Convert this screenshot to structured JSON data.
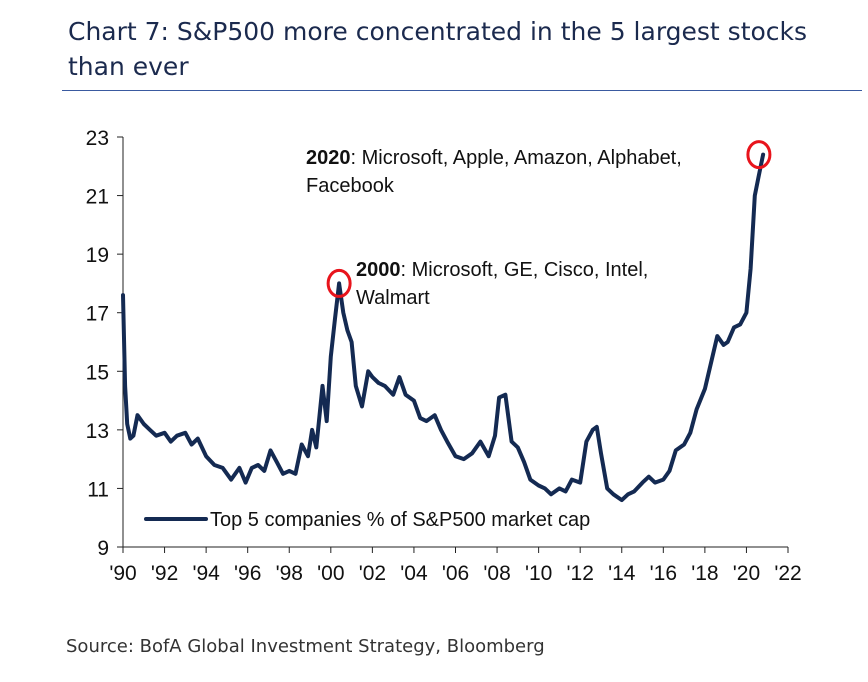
{
  "title": "Chart 7: S&P500 more concentrated in the 5 largest stocks than ever",
  "source": "Source: BofA Global Investment Strategy, Bloomberg",
  "annotations": [
    {
      "bold": "2020",
      "text": ": Microsoft, Apple, Amazon, Alphabet, Facebook"
    },
    {
      "bold": "2000",
      "text": ": Microsoft, GE, Cisco, Intel, Walmart"
    }
  ],
  "colors": {
    "line": "#142a52",
    "highlight": "#e8141c",
    "title": "#1b2a4e"
  },
  "chart_data": {
    "type": "line",
    "title": "",
    "xlabel": "",
    "ylabel": "",
    "ylim": [
      9,
      23
    ],
    "xlim": [
      1990,
      2023
    ],
    "yticks": [
      9,
      11,
      13,
      15,
      17,
      19,
      21,
      23
    ],
    "xticks": [
      "'90",
      "'92",
      "'94",
      "'96",
      "'98",
      "'00",
      "'02",
      "'04",
      "'06",
      "'08",
      "'10",
      "'12",
      "'14",
      "'16",
      "'18",
      "'20",
      "'22"
    ],
    "legend": "bottom-left",
    "grid": false,
    "highlights": [
      {
        "x": 2000.4,
        "y": 18.0
      },
      {
        "x": 2020.6,
        "y": 22.4
      }
    ],
    "series": [
      {
        "name": "Top 5 companies % of S&P500 market cap",
        "x": [
          1990.0,
          1990.1,
          1990.2,
          1990.35,
          1990.5,
          1990.7,
          1991.0,
          1991.3,
          1991.6,
          1992.0,
          1992.3,
          1992.6,
          1993.0,
          1993.3,
          1993.6,
          1994.0,
          1994.4,
          1994.8,
          1995.2,
          1995.6,
          1995.9,
          1996.2,
          1996.5,
          1996.8,
          1997.1,
          1997.4,
          1997.7,
          1998.0,
          1998.3,
          1998.6,
          1998.9,
          1999.1,
          1999.3,
          1999.6,
          1999.8,
          2000.0,
          2000.2,
          2000.4,
          2000.6,
          2000.8,
          2001.0,
          2001.2,
          2001.5,
          2001.8,
          2002.0,
          2002.3,
          2002.6,
          2003.0,
          2003.3,
          2003.6,
          2004.0,
          2004.3,
          2004.6,
          2005.0,
          2005.3,
          2005.6,
          2006.0,
          2006.4,
          2006.8,
          2007.2,
          2007.6,
          2007.9,
          2008.1,
          2008.4,
          2008.7,
          2009.0,
          2009.3,
          2009.6,
          2010.0,
          2010.3,
          2010.6,
          2011.0,
          2011.3,
          2011.6,
          2012.0,
          2012.3,
          2012.6,
          2012.8,
          2013.0,
          2013.3,
          2013.6,
          2014.0,
          2014.3,
          2014.6,
          2015.0,
          2015.3,
          2015.6,
          2016.0,
          2016.3,
          2016.6,
          2017.0,
          2017.3,
          2017.6,
          2018.0,
          2018.3,
          2018.6,
          2018.9,
          2019.1,
          2019.4,
          2019.7,
          2020.0,
          2020.2,
          2020.4,
          2020.6,
          2020.8
        ],
        "values": [
          17.6,
          14.5,
          13.2,
          12.7,
          12.8,
          13.5,
          13.2,
          13.0,
          12.8,
          12.9,
          12.6,
          12.8,
          12.9,
          12.5,
          12.7,
          12.1,
          11.8,
          11.7,
          11.3,
          11.7,
          11.2,
          11.7,
          11.8,
          11.6,
          12.3,
          11.9,
          11.5,
          11.6,
          11.5,
          12.5,
          12.1,
          13.0,
          12.4,
          14.5,
          13.3,
          15.5,
          16.8,
          18.0,
          17.0,
          16.4,
          16.0,
          14.5,
          13.8,
          15.0,
          14.8,
          14.6,
          14.5,
          14.2,
          14.8,
          14.2,
          14.0,
          13.4,
          13.3,
          13.5,
          13.0,
          12.6,
          12.1,
          12.0,
          12.2,
          12.6,
          12.1,
          12.8,
          14.1,
          14.2,
          12.6,
          12.4,
          11.9,
          11.3,
          11.1,
          11.0,
          10.8,
          11.0,
          10.9,
          11.3,
          11.2,
          12.6,
          13.0,
          13.1,
          12.2,
          11.0,
          10.8,
          10.6,
          10.8,
          10.9,
          11.2,
          11.4,
          11.2,
          11.3,
          11.6,
          12.3,
          12.5,
          12.9,
          13.7,
          14.4,
          15.3,
          16.2,
          15.9,
          16.0,
          16.5,
          16.6,
          17.0,
          18.5,
          21.0,
          21.7,
          22.4
        ]
      }
    ]
  }
}
